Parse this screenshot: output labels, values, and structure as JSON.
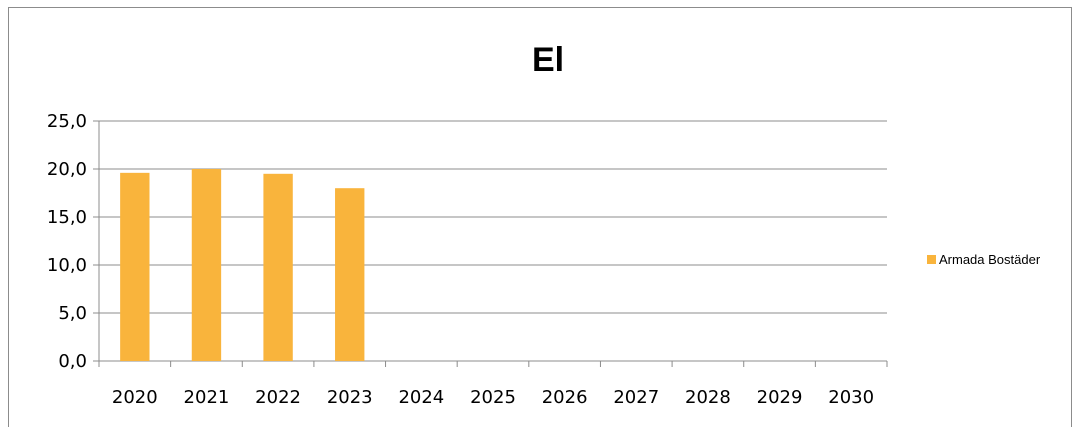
{
  "chart_data": {
    "type": "bar",
    "title": "El",
    "categories": [
      "2020",
      "2021",
      "2022",
      "2023",
      "2024",
      "2025",
      "2026",
      "2027",
      "2028",
      "2029",
      "2030"
    ],
    "series": [
      {
        "name": "Armada Bostäder",
        "color": "#f9b43c",
        "values": [
          19.6,
          20.0,
          19.5,
          18.0,
          null,
          null,
          null,
          null,
          null,
          null,
          null
        ]
      }
    ],
    "yticks": [
      "0,0",
      "5,0",
      "10,0",
      "15,0",
      "20,0",
      "25,0"
    ],
    "ylim": [
      0,
      25
    ],
    "ystep": 5,
    "grid": true,
    "legend_position": "right"
  }
}
